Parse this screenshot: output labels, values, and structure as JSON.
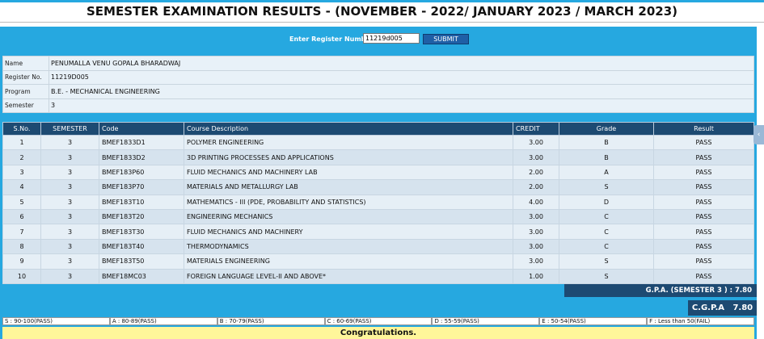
{
  "page_title": "SEMESTER EXAMINATION RESULTS - (NOVEMBER - 2022/ JANUARY 2023 / MARCH 2023)",
  "register_form": {
    "label": "Enter Register Number",
    "value": "11219d005",
    "submit_label": "SUBMIT"
  },
  "student": {
    "rows": [
      {
        "key": "Name",
        "value": "PENUMALLA VENU GOPALA BHARADWAJ"
      },
      {
        "key": "Register No.",
        "value": "11219D005"
      },
      {
        "key": "Program",
        "value": "B.E. - MECHANICAL ENGINEERING"
      },
      {
        "key": "Semester",
        "value": "3"
      }
    ]
  },
  "results": {
    "headers": [
      "S.No.",
      "SEMESTER",
      "Code",
      "Course Description",
      "CREDIT",
      "Grade",
      "Result"
    ],
    "rows": [
      [
        "1",
        "3",
        "BMEF1833D1",
        "POLYMER ENGINEERING",
        "3.00",
        "B",
        "PASS"
      ],
      [
        "2",
        "3",
        "BMEF1833D2",
        "3D PRINTING PROCESSES AND APPLICATIONS",
        "3.00",
        "B",
        "PASS"
      ],
      [
        "3",
        "3",
        "BMEF183P60",
        "FLUID MECHANICS AND MACHINERY LAB",
        "2.00",
        "A",
        "PASS"
      ],
      [
        "4",
        "3",
        "BMEF183P70",
        "MATERIALS AND METALLURGY LAB",
        "2.00",
        "S",
        "PASS"
      ],
      [
        "5",
        "3",
        "BMEF183T10",
        "MATHEMATICS - III (PDE, PROBABILITY AND STATISTICS)",
        "4.00",
        "D",
        "PASS"
      ],
      [
        "6",
        "3",
        "BMEF183T20",
        "ENGINEERING MECHANICS",
        "3.00",
        "C",
        "PASS"
      ],
      [
        "7",
        "3",
        "BMEF183T30",
        "FLUID MECHANICS AND MACHINERY",
        "3.00",
        "C",
        "PASS"
      ],
      [
        "8",
        "3",
        "BMEF183T40",
        "THERMODYNAMICS",
        "3.00",
        "C",
        "PASS"
      ],
      [
        "9",
        "3",
        "BMEF183T50",
        "MATERIALS ENGINEERING",
        "3.00",
        "S",
        "PASS"
      ],
      [
        "10",
        "3",
        "BMEF18MC03",
        "FOREIGN LANGUAGE LEVEL-II AND ABOVE*",
        "1.00",
        "S",
        "PASS"
      ]
    ]
  },
  "gpa_text": "G.P.A. (SEMESTER 3 ) : 7.80",
  "cgpa": {
    "label": "C.G.P.A",
    "value": "7.80"
  },
  "grade_legend": [
    "S : 90-100(PASS)",
    "A : 80-89(PASS)",
    "B : 70-79(PASS)",
    "C : 60-69(PASS)",
    "D : 55-59(PASS)",
    "E : 50-54(PASS)",
    "F : Less than 50(FAIL)"
  ],
  "congrats": "Congratulations.",
  "colors": {
    "panel": "#26a8e0",
    "header": "#1d4a72",
    "congrats_bg": "#fff69a"
  },
  "icons": {
    "side_tab": "chevron-left-icon"
  }
}
